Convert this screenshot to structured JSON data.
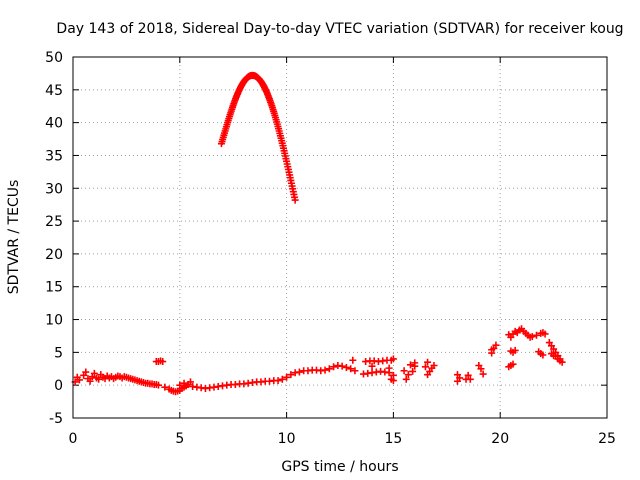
{
  "chart_data": {
    "type": "scatter",
    "title": "Day 143 of 2018, Sidereal Day-to-day VTEC variation (SDTVAR) for receiver koug",
    "xlabel": "GPS time / hours",
    "ylabel": "SDTVAR / TECUs",
    "xlim": [
      0,
      25
    ],
    "ylim": [
      -5,
      50
    ],
    "xticks": [
      "0",
      "5",
      "10",
      "15",
      "20",
      "25"
    ],
    "yticks": [
      "-5",
      "0",
      "5",
      "10",
      "15",
      "20",
      "25",
      "30",
      "35",
      "40",
      "45",
      "50"
    ],
    "grid": true,
    "marker": "+",
    "series": [
      {
        "name": "SDTVAR",
        "color": "#ff0000",
        "points": [
          [
            0.1,
            0.5
          ],
          [
            0.2,
            1.2
          ],
          [
            0.3,
            0.8
          ],
          [
            0.5,
            1.5
          ],
          [
            0.6,
            2.0
          ],
          [
            0.7,
            1.0
          ],
          [
            0.8,
            0.6
          ],
          [
            0.9,
            1.3
          ],
          [
            1.0,
            1.8
          ],
          [
            1.1,
            1.1
          ],
          [
            1.2,
            0.9
          ],
          [
            1.3,
            1.6
          ],
          [
            1.4,
            1.2
          ],
          [
            1.5,
            1.0
          ],
          [
            1.6,
            1.4
          ],
          [
            1.7,
            1.1
          ],
          [
            1.8,
            1.3
          ],
          [
            1.9,
            1.0
          ],
          [
            2.0,
            1.2
          ],
          [
            2.1,
            1.4
          ],
          [
            2.2,
            1.3
          ],
          [
            2.3,
            1.1
          ],
          [
            2.4,
            1.3
          ],
          [
            2.5,
            1.2
          ],
          [
            2.6,
            1.1
          ],
          [
            2.7,
            1.0
          ],
          [
            2.8,
            0.9
          ],
          [
            2.9,
            0.8
          ],
          [
            3.0,
            0.7
          ],
          [
            3.1,
            0.6
          ],
          [
            3.2,
            0.5
          ],
          [
            3.3,
            0.4
          ],
          [
            3.4,
            0.3
          ],
          [
            3.5,
            0.3
          ],
          [
            3.6,
            0.2
          ],
          [
            3.7,
            0.2
          ],
          [
            3.8,
            0.1
          ],
          [
            3.9,
            0.1
          ],
          [
            4.0,
            0.0
          ],
          [
            3.9,
            3.6
          ],
          [
            4.0,
            3.6
          ],
          [
            4.1,
            3.7
          ],
          [
            4.2,
            3.6
          ],
          [
            4.3,
            -0.3
          ],
          [
            4.5,
            -0.6
          ],
          [
            4.6,
            -0.8
          ],
          [
            4.7,
            -0.9
          ],
          [
            4.8,
            -1.0
          ],
          [
            4.9,
            -0.9
          ],
          [
            5.0,
            -0.8
          ],
          [
            5.1,
            -0.5
          ],
          [
            5.2,
            -0.3
          ],
          [
            5.3,
            -0.1
          ],
          [
            5.4,
            0.1
          ],
          [
            5.5,
            0.5
          ],
          [
            5.2,
            0.3
          ],
          [
            5.0,
            0.0
          ],
          [
            5.6,
            -0.2
          ],
          [
            5.8,
            -0.3
          ],
          [
            6.0,
            -0.4
          ],
          [
            6.2,
            -0.5
          ],
          [
            6.4,
            -0.4
          ],
          [
            6.6,
            -0.3
          ],
          [
            6.8,
            -0.2
          ],
          [
            7.0,
            -0.1
          ],
          [
            7.2,
            0.0
          ],
          [
            7.4,
            0.1
          ],
          [
            7.6,
            0.1
          ],
          [
            7.8,
            0.2
          ],
          [
            8.0,
            0.2
          ],
          [
            8.2,
            0.3
          ],
          [
            8.4,
            0.4
          ],
          [
            8.6,
            0.5
          ],
          [
            8.8,
            0.5
          ],
          [
            9.0,
            0.6
          ],
          [
            9.2,
            0.6
          ],
          [
            9.4,
            0.7
          ],
          [
            9.6,
            0.7
          ],
          [
            9.8,
            0.9
          ],
          [
            10.0,
            1.2
          ],
          [
            10.2,
            1.6
          ],
          [
            10.4,
            1.9
          ],
          [
            10.6,
            2.0
          ],
          [
            10.8,
            2.2
          ],
          [
            11.0,
            2.2
          ],
          [
            11.2,
            2.3
          ],
          [
            11.4,
            2.3
          ],
          [
            11.6,
            2.2
          ],
          [
            11.8,
            2.3
          ],
          [
            12.0,
            2.5
          ],
          [
            12.2,
            2.8
          ],
          [
            12.4,
            3.0
          ],
          [
            12.6,
            2.9
          ],
          [
            12.8,
            2.7
          ],
          [
            13.0,
            2.5
          ],
          [
            13.2,
            2.2
          ],
          [
            13.1,
            3.8
          ],
          [
            13.6,
            1.7
          ],
          [
            13.8,
            1.8
          ],
          [
            14.0,
            1.9
          ],
          [
            14.2,
            2.0
          ],
          [
            14.4,
            2.1
          ],
          [
            14.6,
            2.0
          ],
          [
            14.8,
            1.9
          ],
          [
            15.0,
            1.5
          ],
          [
            13.7,
            3.6
          ],
          [
            13.9,
            3.7
          ],
          [
            14.1,
            3.7
          ],
          [
            14.3,
            3.6
          ],
          [
            14.5,
            3.7
          ],
          [
            14.7,
            3.8
          ],
          [
            14.9,
            3.8
          ],
          [
            15.0,
            4.0
          ],
          [
            14.9,
            0.9
          ],
          [
            15.0,
            0.7
          ],
          [
            14.0,
            2.9
          ],
          [
            14.8,
            2.6
          ],
          [
            15.6,
            0.9
          ],
          [
            15.7,
            1.6
          ],
          [
            15.8,
            3.1
          ],
          [
            15.9,
            2.1
          ],
          [
            16.0,
            2.9
          ],
          [
            16.0,
            3.4
          ],
          [
            15.5,
            2.2
          ],
          [
            16.5,
            2.8
          ],
          [
            16.6,
            1.6
          ],
          [
            16.7,
            2.1
          ],
          [
            16.8,
            2.6
          ],
          [
            16.9,
            3.0
          ],
          [
            16.6,
            3.5
          ],
          [
            18.0,
            0.6
          ],
          [
            18.1,
            1.1
          ],
          [
            18.0,
            1.6
          ],
          [
            18.4,
            0.9
          ],
          [
            18.5,
            1.5
          ],
          [
            18.6,
            0.9
          ],
          [
            19.0,
            3.0
          ],
          [
            19.1,
            2.5
          ],
          [
            19.2,
            1.7
          ],
          [
            19.6,
            4.9
          ],
          [
            19.7,
            5.6
          ],
          [
            19.8,
            6.1
          ],
          [
            19.6,
            5.4
          ],
          [
            20.4,
            2.8
          ],
          [
            20.5,
            3.0
          ],
          [
            20.6,
            3.2
          ],
          [
            20.5,
            5.2
          ],
          [
            20.6,
            5.0
          ],
          [
            20.7,
            5.3
          ],
          [
            20.4,
            7.7
          ],
          [
            20.5,
            7.3
          ],
          [
            20.6,
            7.8
          ],
          [
            20.7,
            8.2
          ],
          [
            20.8,
            8.0
          ],
          [
            20.9,
            8.4
          ],
          [
            21.0,
            8.6
          ],
          [
            21.1,
            8.2
          ],
          [
            21.2,
            7.9
          ],
          [
            21.3,
            7.6
          ],
          [
            21.4,
            7.3
          ],
          [
            21.5,
            7.4
          ],
          [
            21.7,
            7.6
          ],
          [
            21.9,
            7.9
          ],
          [
            22.0,
            8.0
          ],
          [
            22.1,
            7.8
          ],
          [
            21.8,
            5.1
          ],
          [
            21.9,
            4.8
          ],
          [
            22.0,
            4.6
          ],
          [
            22.3,
            6.5
          ],
          [
            22.4,
            6.0
          ],
          [
            22.5,
            5.5
          ],
          [
            22.6,
            5.0
          ],
          [
            22.7,
            4.5
          ],
          [
            22.8,
            4.0
          ],
          [
            22.9,
            3.5
          ],
          [
            22.4,
            4.8
          ],
          [
            22.5,
            4.5
          ],
          [
            22.6,
            4.4
          ],
          [
            22.7,
            4.0
          ],
          [
            22.8,
            3.7
          ]
        ],
        "segments": [
          {
            "x_start": 6.95,
            "x_end": 10.4,
            "peak_x": 8.4,
            "peak_y": 47.2,
            "y_start": 36.8,
            "y_end": 28.2
          }
        ]
      }
    ]
  }
}
